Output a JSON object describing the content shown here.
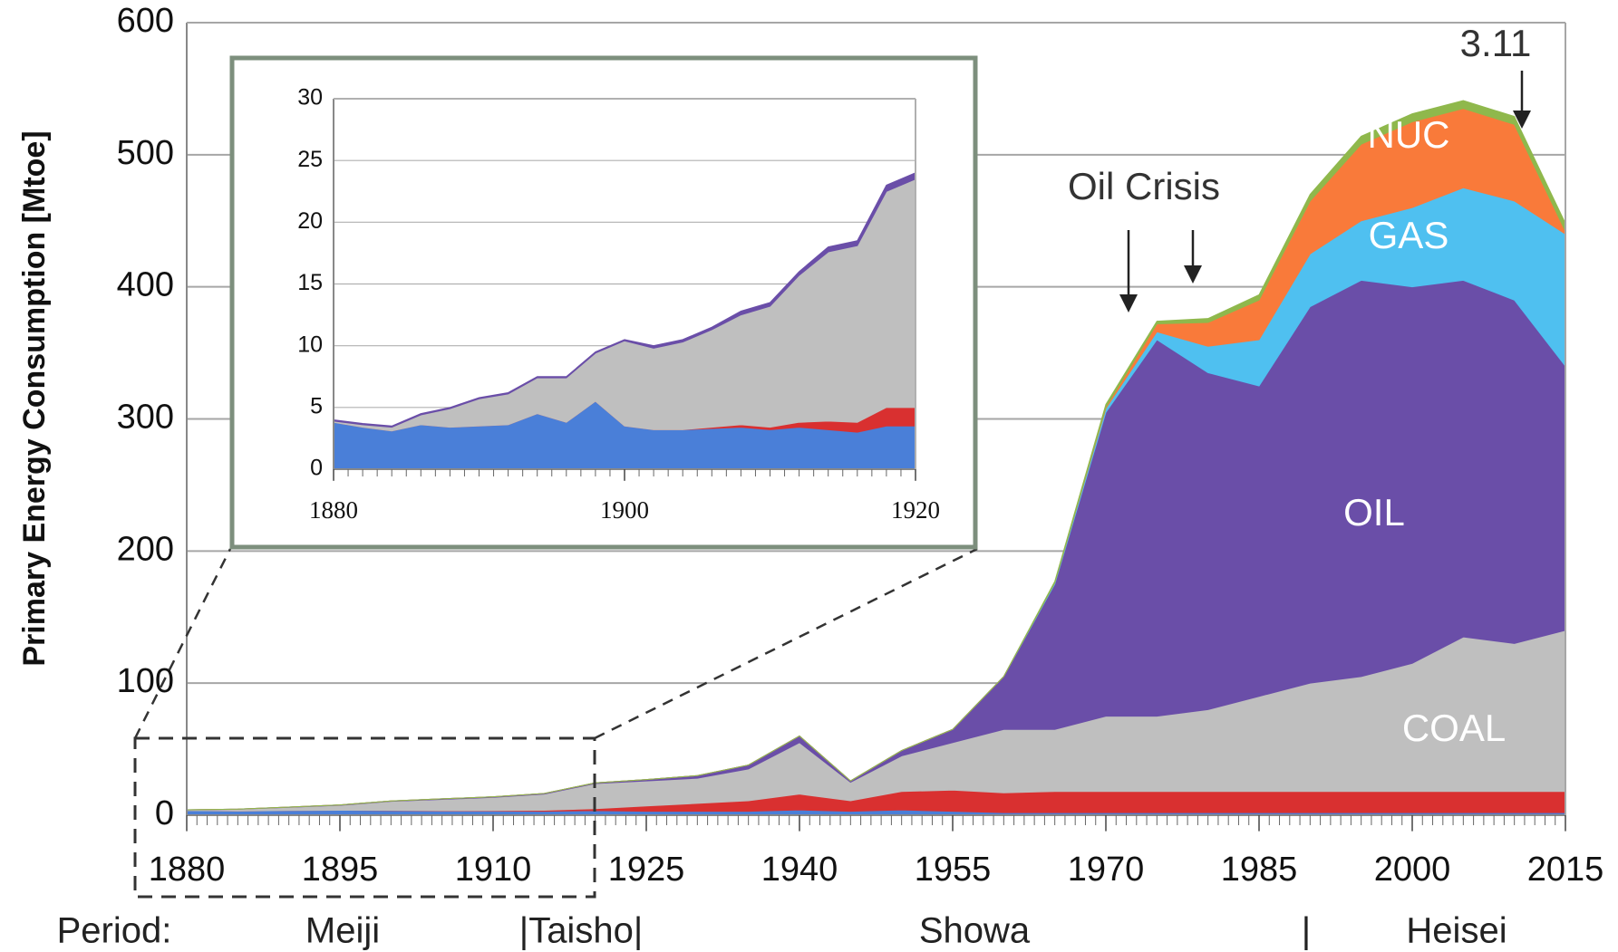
{
  "chart_data": [
    {
      "type": "stacked_area",
      "y_label": "Primary Energy Consumption [Mtoe]",
      "x": [
        1880,
        1885,
        1890,
        1895,
        1900,
        1905,
        1910,
        1915,
        1920,
        1925,
        1930,
        1935,
        1940,
        1945,
        1950,
        1955,
        1960,
        1965,
        1970,
        1975,
        1980,
        1985,
        1990,
        1995,
        2000,
        2005,
        2010,
        2015
      ],
      "xlim": [
        1880,
        2015
      ],
      "xticks": [
        1880,
        1895,
        1910,
        1925,
        1940,
        1955,
        1970,
        1985,
        2000,
        2015
      ],
      "ylim": [
        0,
        600
      ],
      "yticks": [
        0,
        100,
        200,
        300,
        400,
        500,
        600
      ],
      "grid": true,
      "series": [
        {
          "color": "#4a7fd8",
          "values": [
            3.5,
            3.2,
            3.6,
            3.8,
            3.5,
            3.2,
            3.2,
            3.0,
            3.5,
            3,
            3,
            3,
            4,
            3,
            4,
            3,
            2,
            2,
            2,
            2,
            2,
            2,
            2,
            2,
            2,
            2,
            2,
            2
          ]
        },
        {
          "color": "#d93030",
          "values": [
            0,
            0,
            0,
            0,
            0.2,
            0.2,
            0.3,
            0.8,
            1.5,
            4,
            6,
            8,
            12,
            8,
            14,
            16,
            15,
            16,
            16,
            16,
            16,
            16,
            16,
            16,
            16,
            16,
            16,
            16
          ]
        },
        {
          "name": "COAL",
          "color": "#bfbfbf",
          "values": [
            0.5,
            1.3,
            2.4,
            3.7,
            6.8,
            8.6,
            10,
            12.2,
            19,
            19,
            19,
            24,
            39,
            14,
            27,
            36,
            48,
            47,
            57,
            57,
            62,
            72,
            82,
            87,
            97,
            117,
            112,
            122
          ]
        },
        {
          "name": "OIL",
          "color": "#6a4ea8",
          "values": [
            0.1,
            0.1,
            0.2,
            0.3,
            0.3,
            0.4,
            0.5,
            0.5,
            0.5,
            1,
            2,
            3,
            5,
            1,
            4,
            10,
            40,
            110,
            230,
            285,
            255,
            235,
            285,
            300,
            285,
            270,
            260,
            200
          ]
        },
        {
          "name": "GAS",
          "color": "#4fc0f0",
          "values": [
            0,
            0,
            0,
            0,
            0,
            0,
            0,
            0,
            0,
            0,
            0,
            0,
            0,
            0,
            0,
            0,
            0,
            1,
            3,
            6,
            20,
            35,
            40,
            45,
            60,
            70,
            75,
            100
          ]
        },
        {
          "name": "NUC",
          "color": "#f97a3a",
          "values": [
            0,
            0,
            0,
            0,
            0,
            0,
            0,
            0,
            0,
            0,
            0,
            0,
            0,
            0,
            0,
            0,
            0,
            0,
            1,
            6,
            18,
            30,
            40,
            58,
            65,
            60,
            58,
            2
          ]
        },
        {
          "color": "#8fb84c",
          "values": [
            0,
            0,
            0,
            0,
            0,
            0,
            0,
            0,
            0,
            0,
            0,
            0,
            0,
            0,
            0,
            0,
            0,
            1,
            2,
            2,
            3,
            4,
            5,
            6,
            6,
            6,
            6,
            6
          ]
        }
      ],
      "annotations": [
        "Oil Crisis",
        "3.11"
      ],
      "periods": [
        "Period:",
        "Meiji",
        "|Taisho|",
        "Showa",
        "|",
        "Heisei"
      ]
    },
    {
      "type": "stacked_area",
      "x": [
        1880,
        1882,
        1884,
        1886,
        1888,
        1890,
        1892,
        1894,
        1896,
        1898,
        1900,
        1902,
        1904,
        1906,
        1908,
        1910,
        1912,
        1914,
        1916,
        1918,
        1920
      ],
      "xlim": [
        1880,
        1920
      ],
      "xticks": [
        1880,
        1900,
        1920
      ],
      "ylim": [
        0,
        30
      ],
      "yticks": [
        0,
        5,
        10,
        15,
        20,
        25,
        30
      ],
      "grid": true,
      "series": [
        {
          "color": "#4a7fd8",
          "values": [
            3.8,
            3.4,
            3.1,
            3.6,
            3.4,
            3.5,
            3.6,
            4.5,
            3.8,
            5.5,
            3.5,
            3.2,
            3.2,
            3.3,
            3.4,
            3.2,
            3.4,
            3.2,
            3,
            3.5,
            3.5
          ]
        },
        {
          "color": "#d93030",
          "values": [
            0,
            0,
            0,
            0,
            0,
            0,
            0,
            0,
            0,
            0,
            0,
            0,
            0,
            0.1,
            0.2,
            0.2,
            0.4,
            0.7,
            0.8,
            1.5,
            1.5
          ]
        },
        {
          "color": "#bfbfbf",
          "values": [
            0.1,
            0.2,
            0.3,
            0.8,
            1.5,
            2.2,
            2.5,
            2.9,
            3.6,
            3.9,
            6.9,
            6.6,
            7.1,
            7.9,
            8.9,
            9.8,
            11.9,
            13.7,
            14.3,
            17.5,
            18.5
          ]
        },
        {
          "color": "#6a4ea8",
          "values": [
            0.1,
            0.1,
            0.1,
            0.1,
            0.1,
            0.1,
            0.1,
            0.1,
            0.1,
            0.1,
            0.1,
            0.2,
            0.2,
            0.2,
            0.3,
            0.3,
            0.3,
            0.4,
            0.4,
            0.5,
            0.5
          ]
        }
      ]
    }
  ]
}
